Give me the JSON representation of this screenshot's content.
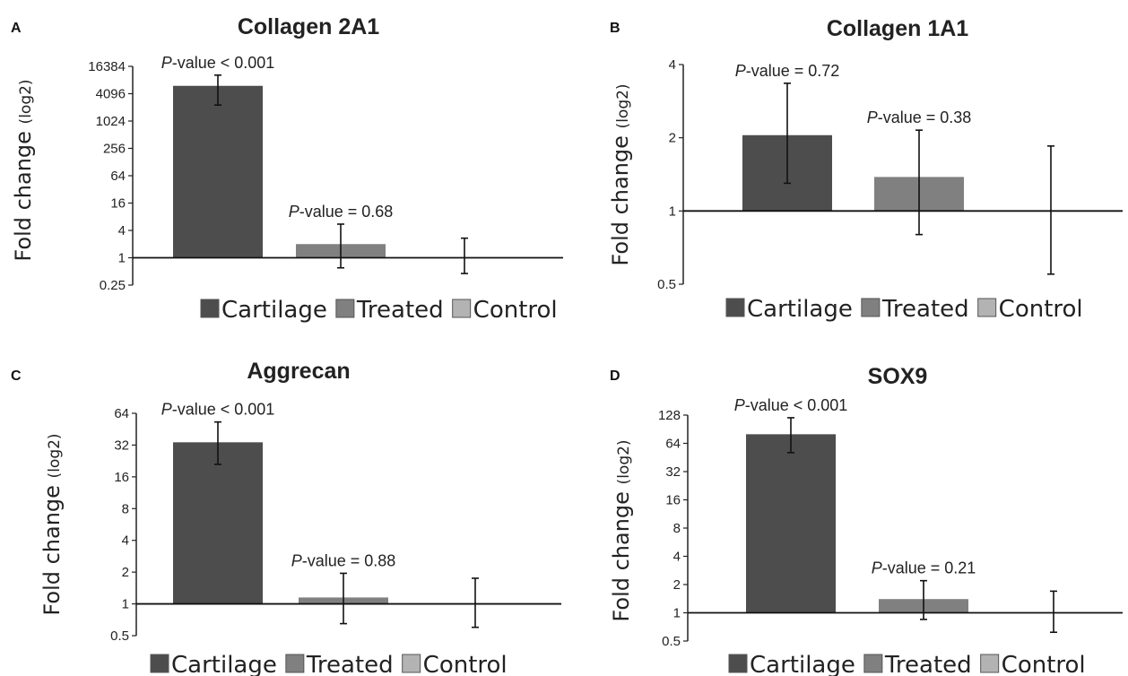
{
  "colors": {
    "Cartilage": "#4d4d4d",
    "Treated": "#808080",
    "Control": "#b3b3b3"
  },
  "legend": [
    "Cartilage",
    "Treated",
    "Control"
  ],
  "chart_data": [
    {
      "panel": "A",
      "title": "Collagen 2A1",
      "type": "bar",
      "yscale": "log2",
      "ylabel": "Fold change",
      "ylabel_suffix": "(log2)",
      "yticks": [
        "16384",
        "4096",
        "1024",
        "256",
        "64",
        "16",
        "4",
        "1",
        "0.25"
      ],
      "ylim": [
        0.25,
        16384
      ],
      "categories": [
        "Cartilage",
        "Treated",
        "Control"
      ],
      "values": [
        6100,
        2.0,
        1
      ],
      "err_low": [
        2300,
        0.6,
        0.45
      ],
      "err_high": [
        10500,
        5.5,
        2.7
      ],
      "annotations": [
        {
          "italic": "P",
          "text": "-value < 0.001",
          "bar": 0
        },
        {
          "italic": "P",
          "text": "-value = 0.68",
          "bar": 1
        }
      ]
    },
    {
      "panel": "B",
      "title": "Collagen 1A1",
      "type": "bar",
      "yscale": "log2",
      "ylabel": "Fold change",
      "ylabel_suffix": "(log2)",
      "yticks": [
        "4",
        "2",
        "1",
        "0.5"
      ],
      "ylim": [
        0.5,
        4
      ],
      "categories": [
        "Cartilage",
        "Treated",
        "Control"
      ],
      "values": [
        2.05,
        1.38,
        1
      ],
      "err_low": [
        1.3,
        0.8,
        0.55
      ],
      "err_high": [
        3.35,
        2.15,
        1.85
      ],
      "annotations": [
        {
          "italic": "P",
          "text": "-value = 0.72",
          "bar": 0
        },
        {
          "italic": "P",
          "text": "-value = 0.38",
          "bar": 1
        }
      ]
    },
    {
      "panel": "C",
      "title": "Aggrecan",
      "type": "bar",
      "yscale": "log2",
      "ylabel": "Fold change",
      "ylabel_suffix": "(log2)",
      "yticks": [
        "64",
        "32",
        "16",
        "8",
        "4",
        "2",
        "1",
        "0.5"
      ],
      "ylim": [
        0.5,
        64
      ],
      "categories": [
        "Cartilage",
        "Treated",
        "Control"
      ],
      "values": [
        34,
        1.15,
        1
      ],
      "err_low": [
        21,
        0.65,
        0.6
      ],
      "err_high": [
        53,
        1.95,
        1.75
      ],
      "annotations": [
        {
          "italic": "P",
          "text": "-value < 0.001",
          "bar": 0
        },
        {
          "italic": "P",
          "text": "-value = 0.88",
          "bar": 1
        }
      ]
    },
    {
      "panel": "D",
      "title": "SOX9",
      "type": "bar",
      "yscale": "log2",
      "ylabel": "Fold change",
      "ylabel_suffix": "(log2)",
      "yticks": [
        "128",
        "64",
        "32",
        "16",
        "8",
        "4",
        "2",
        "1",
        "0.5"
      ],
      "ylim": [
        0.5,
        128
      ],
      "categories": [
        "Cartilage",
        "Treated",
        "Control"
      ],
      "values": [
        80,
        1.4,
        1
      ],
      "err_low": [
        51,
        0.85,
        0.62
      ],
      "err_high": [
        120,
        2.2,
        1.7
      ],
      "annotations": [
        {
          "italic": "P",
          "text": "-value < 0.001",
          "bar": 0
        },
        {
          "italic": "P",
          "text": "-value = 0.21",
          "bar": 1
        }
      ]
    }
  ]
}
